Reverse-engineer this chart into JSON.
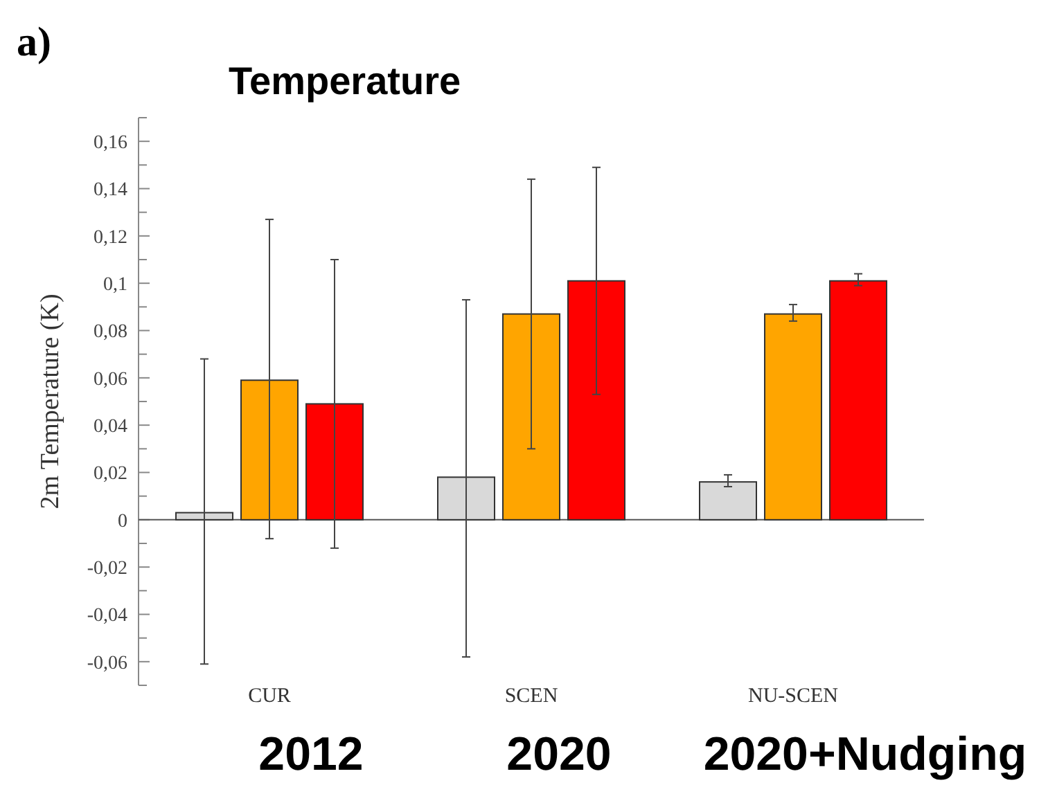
{
  "chart_data": {
    "type": "bar",
    "title": "Temperature",
    "ylabel": "2m Temperature (K)",
    "categories": [
      "CUR",
      "SCEN",
      "NU-SCEN"
    ],
    "series": [
      {
        "color": "#d9d9d9",
        "values": [
          0.003,
          0.018,
          0.016
        ],
        "errors": [
          [
            -0.061,
            0.068
          ],
          [
            -0.058,
            0.093
          ],
          [
            0.014,
            0.019
          ]
        ]
      },
      {
        "color": "#ffa500",
        "values": [
          0.059,
          0.087,
          0.087
        ],
        "errors": [
          [
            -0.008,
            0.127
          ],
          [
            0.03,
            0.144
          ],
          [
            0.084,
            0.091
          ]
        ]
      },
      {
        "color": "#ff0000",
        "values": [
          0.049,
          0.101,
          0.101
        ],
        "errors": [
          [
            -0.012,
            0.11
          ],
          [
            0.053,
            0.149
          ],
          [
            0.099,
            0.104
          ]
        ]
      }
    ],
    "ylim": [
      -0.07,
      0.17
    ],
    "yticks": [
      {
        "value": -0.07,
        "label": null
      },
      {
        "value": -0.06,
        "label": "-0,06"
      },
      {
        "value": -0.05,
        "label": null
      },
      {
        "value": -0.04,
        "label": "-0,04"
      },
      {
        "value": -0.03,
        "label": null
      },
      {
        "value": -0.02,
        "label": "-0,02"
      },
      {
        "value": -0.01,
        "label": null
      },
      0,
      {
        "value": 0.01,
        "label": null
      },
      {
        "value": 0.02,
        "label": "0,02"
      },
      {
        "value": 0.03,
        "label": null
      },
      {
        "value": 0.04,
        "label": "0,04"
      },
      {
        "value": 0.05,
        "label": null
      },
      {
        "value": 0.06,
        "label": "0,06"
      },
      {
        "value": 0.07,
        "label": null
      },
      {
        "value": 0.08,
        "label": "0,08"
      },
      {
        "value": 0.09,
        "label": null
      },
      {
        "value": 0.1,
        "label": "0,1"
      },
      {
        "value": 0.11,
        "label": null
      },
      {
        "value": 0.12,
        "label": "0,12"
      },
      {
        "value": 0.13,
        "label": null
      },
      {
        "value": 0.14,
        "label": "0,14"
      },
      {
        "value": 0.15,
        "label": null
      },
      {
        "value": 0.16,
        "label": "0,16"
      },
      {
        "value": 0.17,
        "label": null
      }
    ],
    "annotations": [
      "a)",
      "2012",
      "2020",
      "2020+Nudging"
    ]
  }
}
